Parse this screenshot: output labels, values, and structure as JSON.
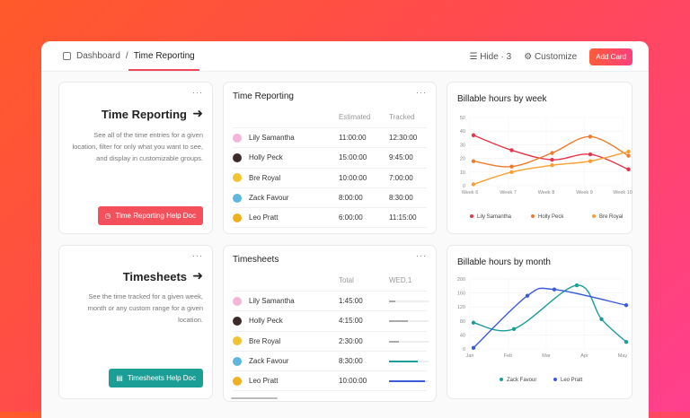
{
  "header": {
    "breadcrumb_root": "Dashboard",
    "breadcrumb_current": "Time Reporting",
    "hide_label": "Hide · 3",
    "customize_label": "Customize",
    "add_card_label": "Add Card"
  },
  "info_cards": [
    {
      "title": "Time Reporting",
      "description": "See all of the time entries for a given location, filter for only what you want to see, and display in customizable groups.",
      "button": "Time Reporting Help Doc",
      "color": "#f4505c"
    },
    {
      "title": "Timesheets",
      "description": "See the time tracked for a given week, month or any custom range for a given location.",
      "button": "Timesheets Help Doc",
      "color": "#1a9e96"
    }
  ],
  "time_reporting": {
    "title": "Time Reporting",
    "columns": [
      "Estimated",
      "Tracked"
    ],
    "rows": [
      {
        "name": "Lily Samantha",
        "estimated": "11:00:00",
        "tracked": "12:30:00",
        "avatar": "#f3b6d8"
      },
      {
        "name": "Holly Peck",
        "estimated": "15:00:00",
        "tracked": "9:45:00",
        "avatar": "#3a2a28"
      },
      {
        "name": "Bre Royal",
        "estimated": "10:00:00",
        "tracked": "7:00:00",
        "avatar": "#f2c230"
      },
      {
        "name": "Zack Favour",
        "estimated": "8:00:00",
        "tracked": "8:30:00",
        "avatar": "#5fb7e0"
      },
      {
        "name": "Leo Pratt",
        "estimated": "6:00:00",
        "tracked": "11:15:00",
        "avatar": "#f0b020"
      }
    ]
  },
  "timesheets": {
    "title": "Timesheets",
    "columns": [
      "Total",
      "WED,1"
    ],
    "rows": [
      {
        "name": "Lily Samantha",
        "total": "1:45:00",
        "fill": 0.17,
        "color": "#aaaaaa",
        "avatar": "#f3b6d8"
      },
      {
        "name": "Holly Peck",
        "total": "4:15:00",
        "fill": 0.48,
        "color": "#aaaaaa",
        "avatar": "#3a2a28"
      },
      {
        "name": "Bre Royal",
        "total": "2:30:00",
        "fill": 0.25,
        "color": "#aaaaaa",
        "avatar": "#f2c230"
      },
      {
        "name": "Zack Favour",
        "total": "8:30:00",
        "fill": 0.72,
        "color": "#1a9e96",
        "avatar": "#5fb7e0"
      },
      {
        "name": "Leo Pratt",
        "total": "10:00:00",
        "fill": 0.9,
        "color": "#3b5bdb",
        "avatar": "#f0b020"
      }
    ]
  },
  "chart_data": [
    {
      "type": "line",
      "title": "Billable hours by week",
      "categories": [
        "Week 6",
        "Week 7",
        "Week 8",
        "Week 9",
        "Week 10"
      ],
      "yticks": [
        0,
        10,
        20,
        30,
        40,
        50
      ],
      "ylim": [
        0,
        50
      ],
      "grid": true,
      "legend": "bottom",
      "series": [
        {
          "name": "Lily Samantha",
          "color": "#e8344a",
          "x": [
            0,
            0.85,
            1.75,
            2.6,
            3.45
          ],
          "values": [
            37,
            26,
            19,
            23,
            12
          ]
        },
        {
          "name": "Holly Peck",
          "color": "#f07a2a",
          "x": [
            0,
            0.85,
            1.75,
            2.6,
            3.45
          ],
          "values": [
            18,
            14,
            24,
            36,
            22
          ]
        },
        {
          "name": "Bre Royal",
          "color": "#f7a030",
          "x": [
            0,
            0.85,
            1.75,
            2.6,
            3.45
          ],
          "values": [
            1,
            10,
            15,
            18,
            25
          ]
        }
      ]
    },
    {
      "type": "line",
      "title": "Billable hours by month",
      "categories": [
        "Jan",
        "Feb",
        "Mar",
        "Apr",
        "May"
      ],
      "yticks": [
        0,
        40,
        80,
        120,
        160,
        200
      ],
      "ylim": [
        0,
        200
      ],
      "grid": true,
      "legend": "bottom",
      "series": [
        {
          "name": "Zack Favour",
          "color": "#1a9e96",
          "x": [
            0,
            0.9,
            2.3,
            2.85,
            3.4
          ],
          "values": [
            75,
            57,
            182,
            85,
            20
          ]
        },
        {
          "name": "Leo Pratt",
          "color": "#3b5bdb",
          "x": [
            0,
            1.2,
            1.8,
            3.4
          ],
          "values": [
            3,
            152,
            170,
            125
          ]
        }
      ]
    }
  ]
}
